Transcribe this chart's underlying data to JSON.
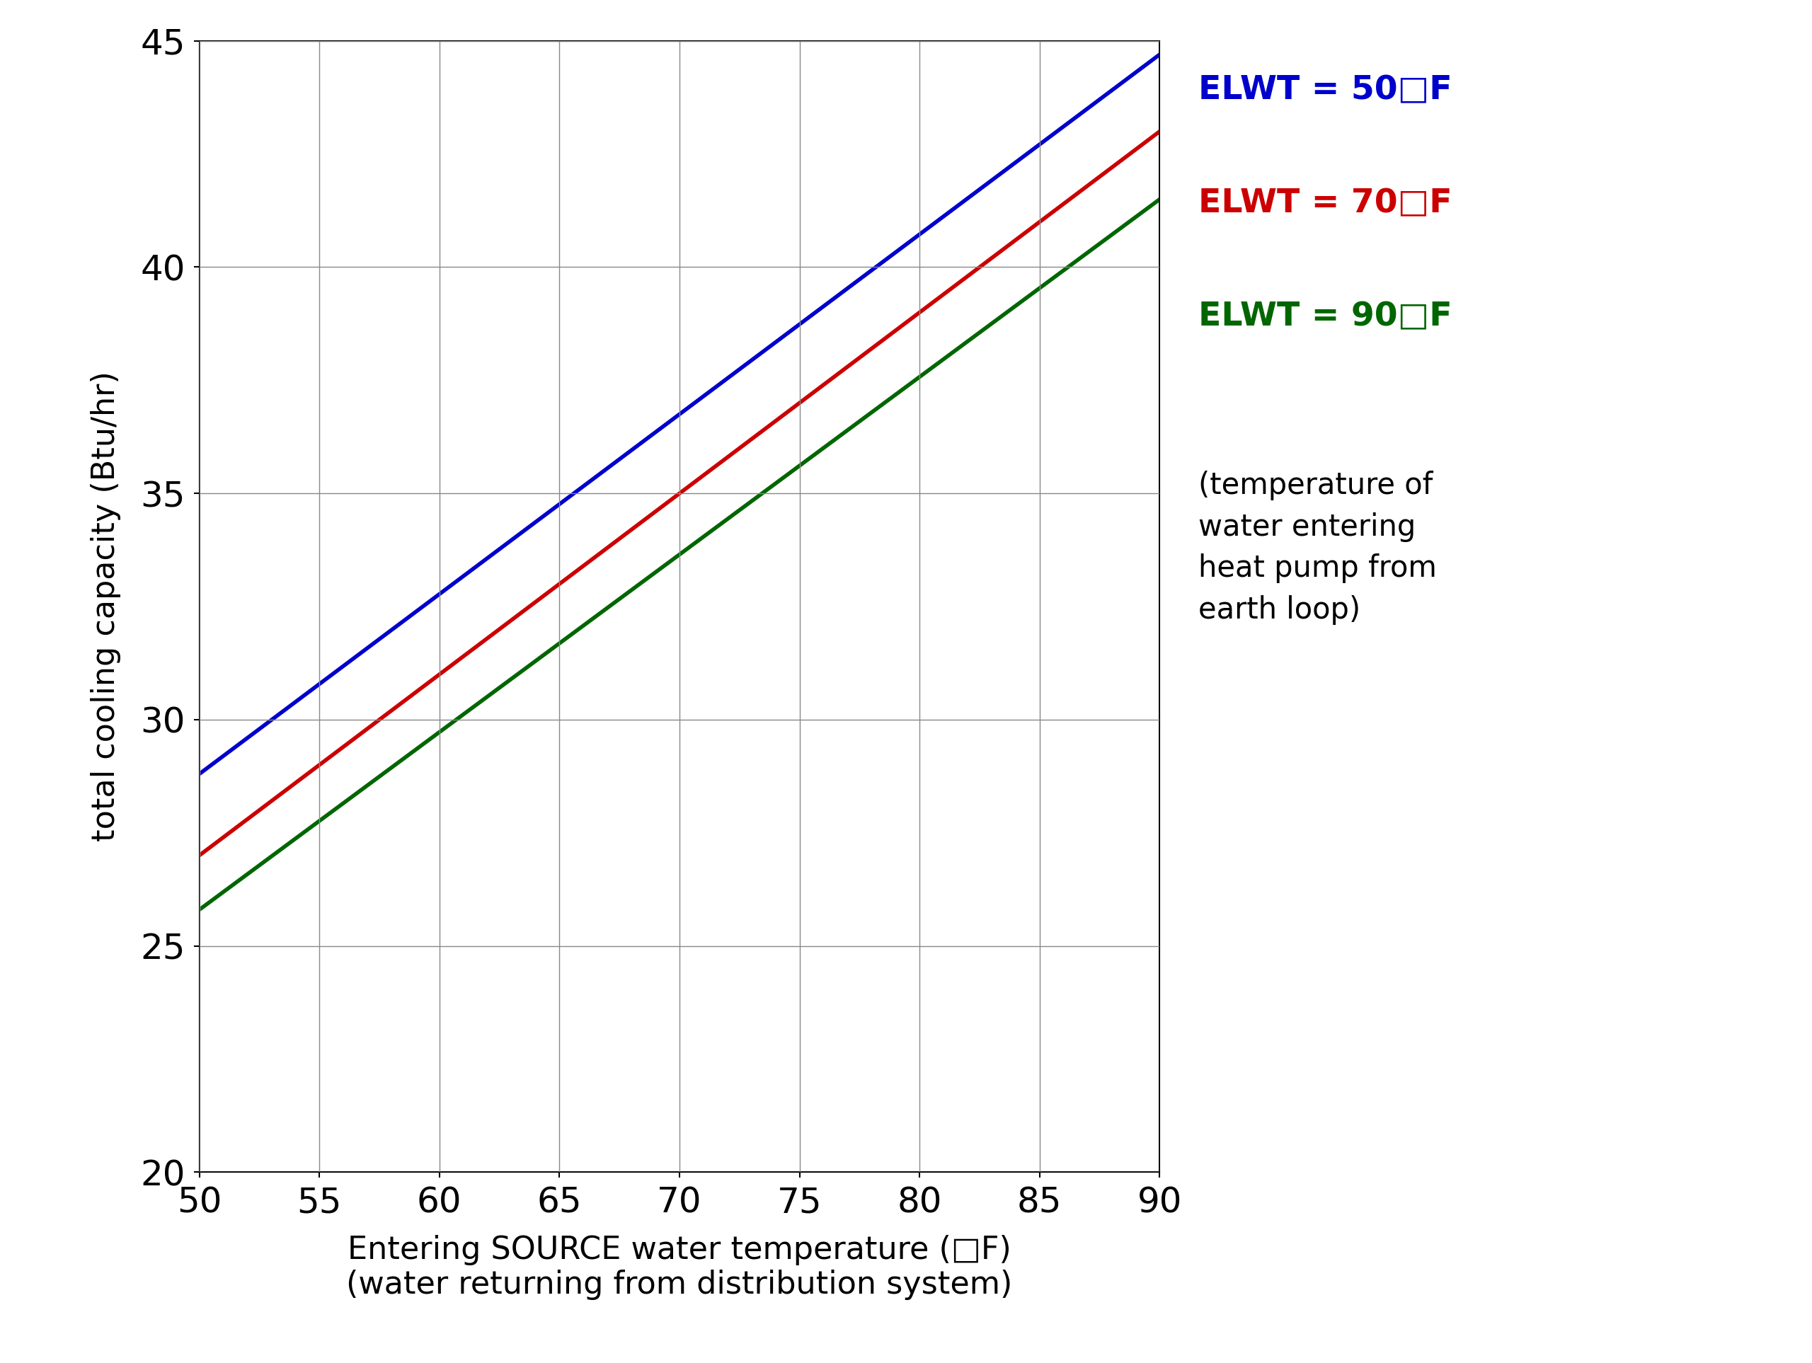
{
  "xlabel_line1": "Entering SOURCE water temperature (□F)",
  "xlabel_line2": "(water returning from distribution system)",
  "ylabel": "total cooling capacity (Btu/hr)",
  "xlim": [
    50,
    90
  ],
  "ylim": [
    20,
    45
  ],
  "xticks": [
    50,
    55,
    60,
    65,
    70,
    75,
    80,
    85,
    90
  ],
  "yticks": [
    20,
    25,
    30,
    35,
    40,
    45
  ],
  "lines": [
    {
      "label": "ELWT = 50□F",
      "color": "#0000cc",
      "x": [
        50,
        90
      ],
      "y": [
        28.8,
        44.7
      ]
    },
    {
      "label": "ELWT = 70□F",
      "color": "#cc0000",
      "x": [
        50,
        90
      ],
      "y": [
        27.0,
        43.0
      ]
    },
    {
      "label": "ELWT = 90□F",
      "color": "#006600",
      "x": [
        50,
        90
      ],
      "y": [
        25.8,
        41.5
      ]
    }
  ],
  "annotation": "(temperature of\nwater entering\nheat pump from\nearth loop)",
  "background_color": "#ffffff",
  "grid_color": "#888888",
  "line_width": 4.0,
  "label_fontsize": 32,
  "tick_fontsize": 36,
  "legend_fontsize": 34,
  "annotation_fontsize": 30,
  "ylabel_fontsize": 32
}
